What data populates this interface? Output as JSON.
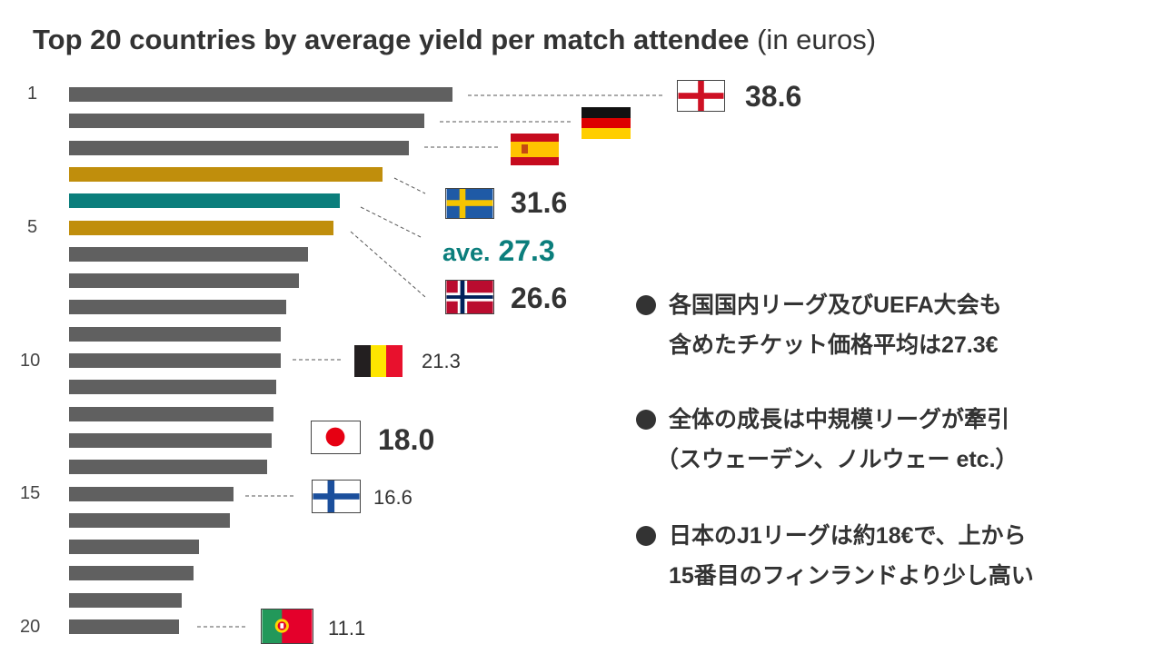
{
  "chart_data": {
    "type": "bar",
    "orientation": "horizontal",
    "title": "Top 20 countries by average yield per match attendee",
    "title_suffix": "(in euros)",
    "rank_labels": [
      "1",
      "5",
      "10",
      "15",
      "20"
    ],
    "rows": [
      {
        "rank": 1,
        "country": "England",
        "value": 38.6,
        "label": "38.6",
        "color": "#606060"
      },
      {
        "rank": 2,
        "country": "Germany",
        "value": 35.8,
        "color": "#606060"
      },
      {
        "rank": 3,
        "country": "Spain",
        "value": 34.2,
        "color": "#606060"
      },
      {
        "rank": 4,
        "country": "Sweden",
        "value": 31.6,
        "label": "31.6",
        "color": "#C08E0C"
      },
      {
        "rank": null,
        "country": "average",
        "value": 27.3,
        "label": "27.3",
        "color": "#0B7E7C"
      },
      {
        "rank": 5,
        "country": "Norway",
        "value": 26.6,
        "label": "26.6",
        "color": "#C08E0C"
      },
      {
        "rank": 6,
        "value": 24.1,
        "color": "#606060"
      },
      {
        "rank": 7,
        "value": 23.1,
        "color": "#606060"
      },
      {
        "rank": 8,
        "value": 21.9,
        "color": "#606060"
      },
      {
        "rank": 9,
        "value": 21.3,
        "color": "#606060"
      },
      {
        "rank": 10,
        "country": "Belgium",
        "value": 21.3,
        "label": "21.3",
        "color": "#606060"
      },
      {
        "rank": 11,
        "value": 20.9,
        "color": "#606060"
      },
      {
        "rank": 12,
        "value": 20.6,
        "color": "#606060"
      },
      {
        "rank": 13,
        "value": 20.4,
        "color": "#606060"
      },
      {
        "rank": 14,
        "value": 19.9,
        "color": "#606060"
      },
      {
        "rank": 15,
        "country": "Finland",
        "value": 16.6,
        "label": "16.6",
        "color": "#606060"
      },
      {
        "rank": 16,
        "value": 16.2,
        "color": "#606060"
      },
      {
        "rank": 17,
        "value": 13.1,
        "color": "#606060"
      },
      {
        "rank": 18,
        "value": 12.5,
        "color": "#606060"
      },
      {
        "rank": 19,
        "value": 11.3,
        "color": "#606060"
      },
      {
        "rank": 20,
        "country": "Portugal",
        "value": 11.1,
        "label": "11.1",
        "color": "#606060"
      }
    ],
    "average_prefix": "ave.",
    "japan": {
      "country": "Japan",
      "value": 18.0,
      "label": "18.0"
    },
    "xlim": [
      0,
      38.6
    ]
  },
  "notes": [
    {
      "lines": [
        "各国国内リーグ及びUEFA大会も",
        "含めたチケット価格平均は27.3€"
      ]
    },
    {
      "lines": [
        "全体の成長は中規模リーグが牽引",
        "（スウェーデン、ノルウェー etc.）"
      ]
    },
    {
      "lines": [
        "日本のJ1リーグは約18€で、上から",
        "15番目のフィンランドより少し高い"
      ]
    }
  ],
  "colors": {
    "bar": "#606060",
    "highlight": "#C08E0C",
    "average": "#0B7E7C"
  }
}
